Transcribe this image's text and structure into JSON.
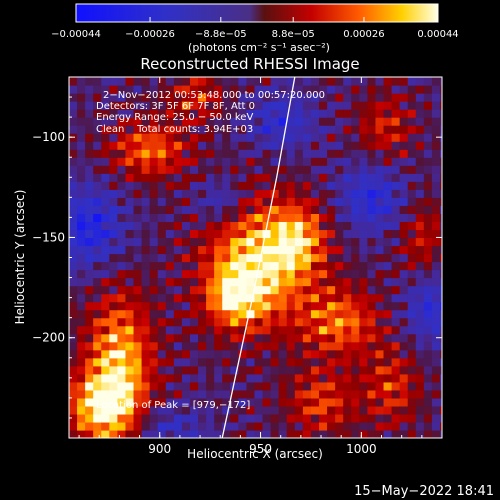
{
  "chart_data": {
    "type": "heatmap",
    "title": "Reconstructed RHESSI Image",
    "xlabel": "Heliocentric X (arcsec)",
    "ylabel": "Heliocentric Y (arcsec)",
    "xlim": [
      855,
      1040
    ],
    "ylim": [
      -250,
      -70
    ],
    "x_ticks": [
      900,
      950,
      1000
    ],
    "x_tick_labels": [
      "900",
      "950",
      "1000"
    ],
    "y_ticks": [
      -100,
      -150,
      -200
    ],
    "y_tick_labels": [
      "−100",
      "−150",
      "−200"
    ],
    "colorbar": {
      "range": [
        -0.00044,
        0.00044
      ],
      "ticks": [
        -0.00044,
        -0.00026,
        -8.8e-05,
        8.8e-05,
        0.00026,
        0.00044
      ],
      "tick_labels": [
        "−0.00044",
        "−0.00026",
        "−8.8e−05",
        "8.8e−05",
        "0.00026",
        "0.00044"
      ],
      "unit_label": "(photons cm⁻² s⁻¹ asec⁻²)"
    },
    "info_lines": [
      "2−Nov−2012 00:53:48.000 to 00:57:20.000",
      "Detectors: 3F 5F 6F 7F 8F, Att 0",
      "Energy Range: 25.0 − 50.0 keV",
      "Clean    Total counts: 3.94E+03"
    ],
    "peak_label": "Location of Peak = [979,−172]",
    "peak": [
      979,
      -172
    ],
    "limb": [
      [
        931,
        -250
      ],
      [
        946,
        -180
      ],
      [
        958,
        -120
      ],
      [
        967,
        -70
      ]
    ],
    "sources": [
      {
        "x": 949,
        "y": -162,
        "amp": 0.00044,
        "sx": 19,
        "sy": 22
      },
      {
        "x": 937,
        "y": -180,
        "amp": 0.00028,
        "sx": 10,
        "sy": 10
      },
      {
        "x": 970,
        "y": -150,
        "amp": 0.00024,
        "sx": 10,
        "sy": 12
      },
      {
        "x": 880,
        "y": -212,
        "amp": 0.0004,
        "sx": 12,
        "sy": 24
      },
      {
        "x": 870,
        "y": -235,
        "amp": 0.00036,
        "sx": 12,
        "sy": 12
      },
      {
        "x": 895,
        "y": -106,
        "amp": 0.0003,
        "sx": 14,
        "sy": 10
      },
      {
        "x": 918,
        "y": -80,
        "amp": 0.00022,
        "sx": 10,
        "sy": 8
      },
      {
        "x": 990,
        "y": -192,
        "amp": 0.0003,
        "sx": 14,
        "sy": 12
      },
      {
        "x": 980,
        "y": -232,
        "amp": 0.00024,
        "sx": 12,
        "sy": 12
      },
      {
        "x": 1012,
        "y": -95,
        "amp": 0.0002,
        "sx": 10,
        "sy": 12
      },
      {
        "x": 1030,
        "y": -150,
        "amp": 0.00018,
        "sx": 8,
        "sy": 14
      },
      {
        "x": 1015,
        "y": -225,
        "amp": 0.00022,
        "sx": 10,
        "sy": 14
      },
      {
        "x": 1005,
        "y": -130,
        "amp": -0.00026,
        "sx": 12,
        "sy": 12
      },
      {
        "x": 930,
        "y": -132,
        "amp": -0.0002,
        "sx": 9,
        "sy": 8
      },
      {
        "x": 865,
        "y": -145,
        "amp": -0.0003,
        "sx": 12,
        "sy": 14
      },
      {
        "x": 1035,
        "y": -185,
        "amp": -0.00024,
        "sx": 10,
        "sy": 12
      },
      {
        "x": 960,
        "y": -92,
        "amp": -0.00022,
        "sx": 12,
        "sy": 10
      },
      {
        "x": 905,
        "y": -245,
        "amp": -0.00018,
        "sx": 12,
        "sy": 8
      }
    ]
  },
  "footer": {
    "date": "15−May−2022 18:41"
  }
}
